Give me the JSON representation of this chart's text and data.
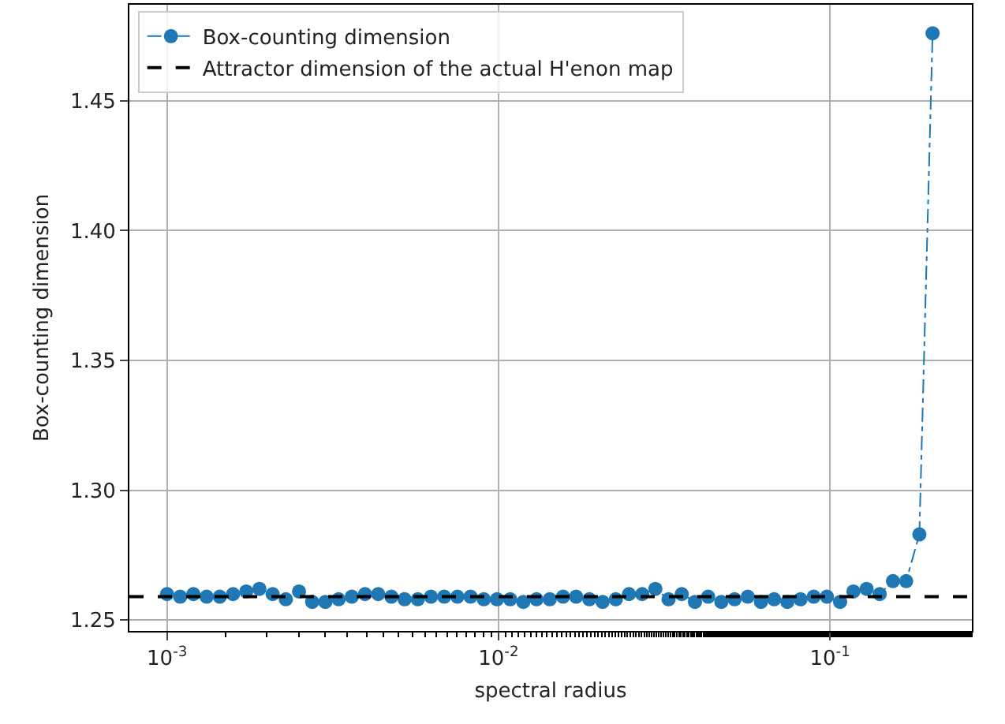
{
  "chart_data": {
    "type": "line",
    "xlabel": "spectral radius",
    "ylabel": "Box-counting dimension",
    "log": "x",
    "grid": true,
    "legend": "top left",
    "marker": "circle",
    "xlim": [
      0.00077,
      0.268
    ],
    "ylim": [
      1.2458,
      1.487
    ],
    "xticks": [
      {
        "value": 0.001,
        "label": "10$^{-3}$"
      },
      {
        "value": 0.01,
        "label": "10$^{-2}$"
      },
      {
        "value": 0.1,
        "label": "10$^{-1}$"
      }
    ],
    "yticks": [
      1.25,
      {
        "value": 1.3,
        "label": "1.30"
      },
      1.35,
      {
        "value": 1.4,
        "label": "1.40"
      },
      1.45
    ],
    "x": [
      0.001,
      0.001096,
      0.001201,
      0.001317,
      0.001443,
      0.001582,
      0.001734,
      0.0019,
      0.002083,
      0.002283,
      0.002502,
      0.002742,
      0.003005,
      0.003294,
      0.00361,
      0.003957,
      0.004337,
      0.004753,
      0.00521,
      0.00571,
      0.006258,
      0.006859,
      0.007518,
      0.00824,
      0.009031,
      0.009898,
      0.01085,
      0.01189,
      0.01303,
      0.01428,
      0.01566,
      0.01715,
      0.0188,
      0.02061,
      0.02259,
      0.02476,
      0.02713,
      0.02974,
      0.03259,
      0.03572,
      0.03915,
      0.04291,
      0.04703,
      0.05155,
      0.0565,
      0.06192,
      0.06787,
      0.07438,
      0.08152,
      0.08935,
      0.09793,
      0.1073,
      0.1177,
      0.129,
      0.1413,
      0.1549,
      0.1698,
      0.1861,
      0.204
    ],
    "series": [
      {
        "name": "Box-counting dimension",
        "color": "#1f77b4",
        "line_style": "dashdot",
        "values": [
          1.26,
          1.259,
          1.26,
          1.259,
          1.259,
          1.26,
          1.261,
          1.262,
          1.26,
          1.258,
          1.261,
          1.257,
          1.257,
          1.258,
          1.259,
          1.26,
          1.26,
          1.259,
          1.258,
          1.258,
          1.259,
          1.259,
          1.259,
          1.259,
          1.258,
          1.258,
          1.258,
          1.257,
          1.258,
          1.258,
          1.259,
          1.259,
          1.258,
          1.257,
          1.258,
          1.26,
          1.26,
          1.262,
          1.258,
          1.26,
          1.257,
          1.259,
          1.257,
          1.258,
          1.259,
          1.257,
          1.258,
          1.257,
          1.258,
          1.259,
          1.259,
          1.257,
          1.261,
          1.262,
          1.26,
          1.265,
          1.265,
          1.283,
          1.476
        ]
      }
    ],
    "ref_lines": [
      {
        "axis": "y",
        "value": 1.259,
        "label": "Attractor dimension of the actual H'enon map",
        "color": "#000000",
        "line_style": "dashed"
      }
    ]
  }
}
